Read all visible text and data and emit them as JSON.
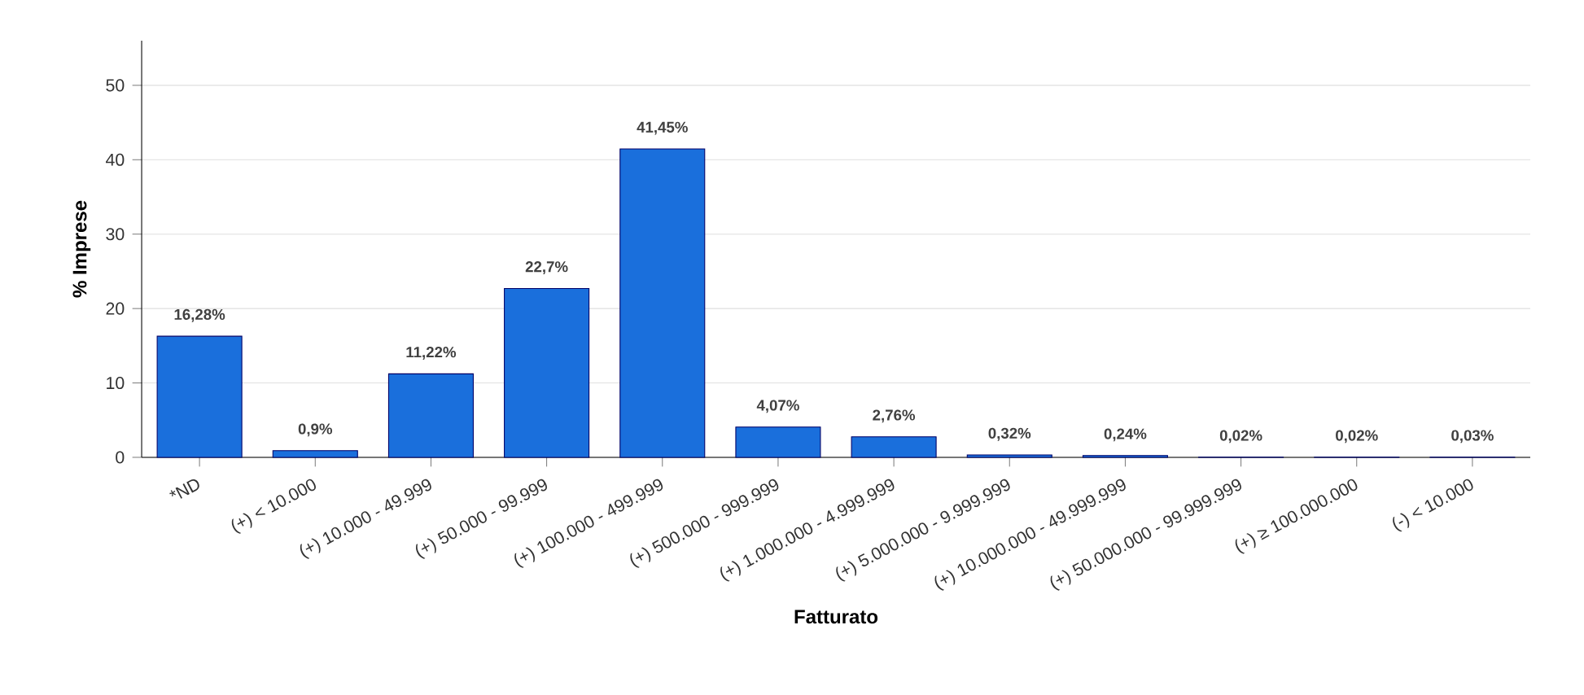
{
  "chart_data": {
    "type": "bar",
    "xlabel": "Fatturato",
    "ylabel": "% Imprese",
    "categories": [
      "*ND",
      "(+) < 10.000",
      "(+) 10.000 - 49.999",
      "(+) 50.000 - 99.999",
      "(+) 100.000 - 499.999",
      "(+) 500.000 - 999.999",
      "(+) 1.000.000 - 4.999.999",
      "(+) 5.000.000 - 9.999.999",
      "(+) 10.000.000 - 49.999.999",
      "(+) 50.000.000 - 99.999.999",
      "(+) ≥ 100.000.000",
      "(-) < 10.000"
    ],
    "values": [
      16.28,
      0.9,
      11.22,
      22.7,
      41.45,
      4.07,
      2.76,
      0.32,
      0.24,
      0.02,
      0.02,
      0.03
    ],
    "value_labels": [
      "16,28%",
      "0,9%",
      "11,22%",
      "22,7%",
      "41,45%",
      "4,07%",
      "2,76%",
      "0,32%",
      "0,24%",
      "0,02%",
      "0,02%",
      "0,03%"
    ],
    "color": "#1a6fdc",
    "ylim": [
      0,
      56
    ],
    "yticks": [
      0,
      10,
      20,
      30,
      40,
      50
    ],
    "grid": "y"
  }
}
